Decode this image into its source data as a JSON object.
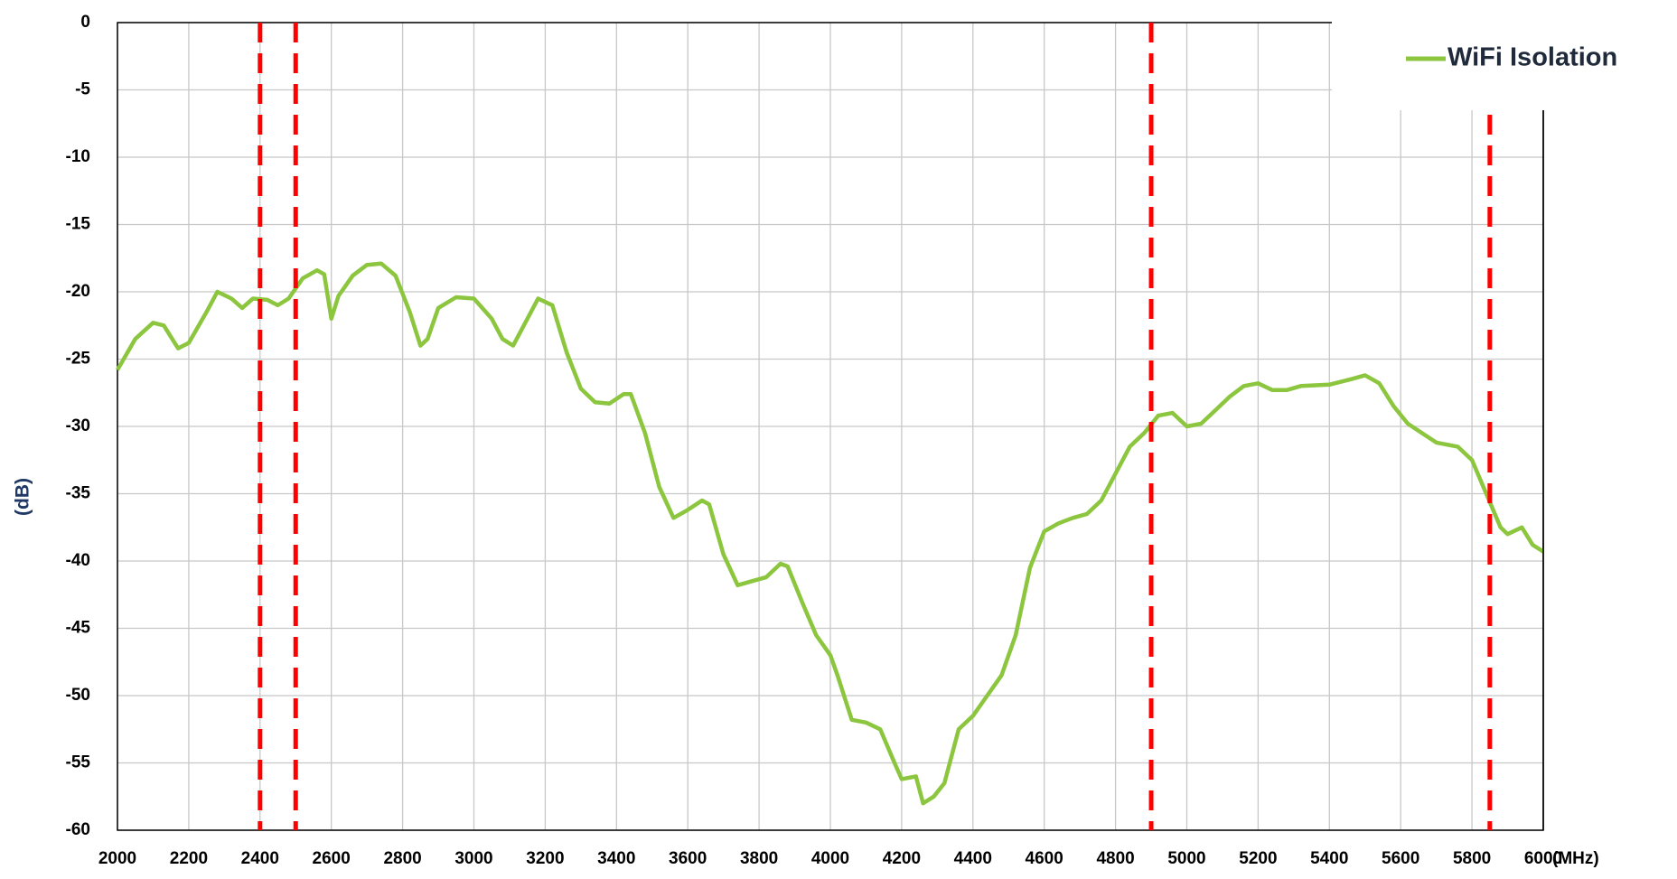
{
  "chart_data": {
    "type": "line",
    "xlabel": "(MHz)",
    "ylabel": "(dB)",
    "xlim": [
      2000,
      6000
    ],
    "ylim": [
      -60,
      0
    ],
    "xticks": [
      2000,
      2200,
      2400,
      2600,
      2800,
      3000,
      3200,
      3400,
      3600,
      3800,
      4000,
      4200,
      4400,
      4600,
      4800,
      5000,
      5200,
      5400,
      5600,
      5800,
      6000
    ],
    "yticks": [
      0,
      -5,
      -10,
      -15,
      -20,
      -25,
      -30,
      -35,
      -40,
      -45,
      -50,
      -55,
      -60
    ],
    "grid": true,
    "legend": "upper right",
    "vlines": [
      2400,
      2500,
      4900,
      5850
    ],
    "vline_color": "#ff0000",
    "x": [
      2000,
      2050,
      2100,
      2130,
      2170,
      2200,
      2250,
      2280,
      2320,
      2350,
      2380,
      2420,
      2450,
      2480,
      2520,
      2560,
      2580,
      2600,
      2620,
      2660,
      2700,
      2740,
      2780,
      2820,
      2850,
      2870,
      2900,
      2950,
      3000,
      3050,
      3080,
      3110,
      3150,
      3180,
      3220,
      3260,
      3300,
      3340,
      3380,
      3420,
      3440,
      3480,
      3520,
      3560,
      3600,
      3640,
      3660,
      3700,
      3740,
      3780,
      3820,
      3860,
      3880,
      3920,
      3960,
      4000,
      4020,
      4060,
      4100,
      4140,
      4180,
      4200,
      4240,
      4260,
      4290,
      4320,
      4360,
      4400,
      4440,
      4480,
      4520,
      4560,
      4600,
      4640,
      4680,
      4720,
      4760,
      4800,
      4840,
      4880,
      4920,
      4960,
      5000,
      5040,
      5080,
      5120,
      5160,
      5200,
      5240,
      5280,
      5320,
      5400,
      5460,
      5500,
      5540,
      5580,
      5620,
      5660,
      5700,
      5760,
      5800,
      5840,
      5880,
      5900,
      5940,
      5970,
      6000
    ],
    "series": [
      {
        "name": "WiFi Isolation",
        "color": "#8cc63f",
        "values": [
          -25.8,
          -23.5,
          -22.3,
          -22.5,
          -24.2,
          -23.8,
          -21.5,
          -20.0,
          -20.5,
          -21.2,
          -20.5,
          -20.6,
          -21.0,
          -20.5,
          -19.0,
          -18.4,
          -18.7,
          -22.0,
          -20.3,
          -18.8,
          -18.0,
          -17.9,
          -18.8,
          -21.5,
          -24.0,
          -23.5,
          -21.2,
          -20.4,
          -20.5,
          -22.0,
          -23.5,
          -24.0,
          -22.0,
          -20.5,
          -21.0,
          -24.5,
          -27.2,
          -28.2,
          -28.3,
          -27.6,
          -27.6,
          -30.5,
          -34.5,
          -36.8,
          -36.2,
          -35.5,
          -35.8,
          -39.5,
          -41.8,
          -41.5,
          -41.2,
          -40.2,
          -40.4,
          -43.0,
          -45.5,
          -47.0,
          -48.5,
          -51.8,
          -52.0,
          -52.5,
          -55.0,
          -56.2,
          -56.0,
          -58.0,
          -57.5,
          -56.5,
          -52.5,
          -51.5,
          -50.0,
          -48.5,
          -45.5,
          -40.5,
          -37.8,
          -37.2,
          -36.8,
          -36.5,
          -35.5,
          -33.5,
          -31.5,
          -30.5,
          -29.2,
          -29.0,
          -30.0,
          -29.8,
          -28.8,
          -27.8,
          -27.0,
          -26.8,
          -27.3,
          -27.3,
          -27.0,
          -26.9,
          -26.5,
          -26.2,
          -26.8,
          -28.5,
          -29.8,
          -30.5,
          -31.2,
          -31.5,
          -32.5,
          -35.0,
          -37.5,
          -38.0,
          -37.5,
          -38.8,
          -39.3
        ]
      }
    ]
  }
}
